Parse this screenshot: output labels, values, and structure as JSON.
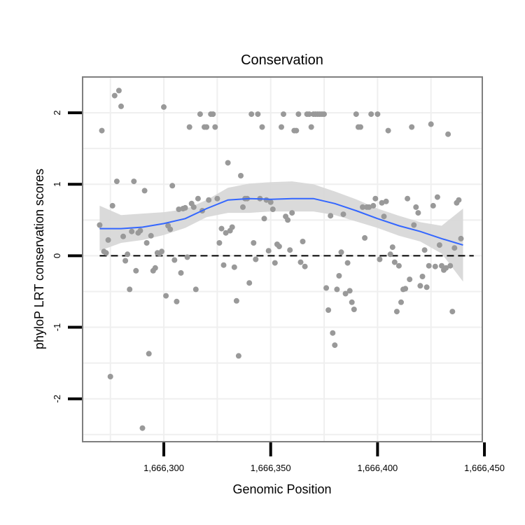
{
  "chart_data": {
    "type": "scatter",
    "title": "Conservation",
    "xlabel": "Genomic Position",
    "ylabel": "phyloP LRT conservation scores",
    "xlim": [
      1666262,
      1666449
    ],
    "ylim": [
      -2.6,
      2.5
    ],
    "xticks": [
      1666300,
      1666350,
      1666400,
      1666450
    ],
    "xtick_labels": [
      "1,666,300",
      "1,666,350",
      "1,666,400",
      "1,666,450"
    ],
    "yticks": [
      -2,
      -1,
      0,
      1,
      2
    ],
    "ytick_labels": [
      "-2",
      "-1",
      "0",
      "1",
      "2"
    ],
    "reference_line": {
      "y": 0,
      "style": "dashed"
    },
    "colors": {
      "points": "#999999",
      "smooth": "#3366ff",
      "band": "#d6d6d6",
      "panel_border": "#7f7f7f",
      "grid": "#efefef"
    },
    "points": [
      [
        1666270,
        0.43
      ],
      [
        1666271,
        1.75
      ],
      [
        1666272,
        0.06
      ],
      [
        1666273,
        0.04
      ],
      [
        1666274,
        0.22
      ],
      [
        1666275,
        -1.69
      ],
      [
        1666276,
        0.7
      ],
      [
        1666277,
        2.24
      ],
      [
        1666278,
        1.04
      ],
      [
        1666279,
        2.31
      ],
      [
        1666280,
        2.09
      ],
      [
        1666281,
        0.27
      ],
      [
        1666282,
        -0.07
      ],
      [
        1666283,
        0.02
      ],
      [
        1666284,
        -0.47
      ],
      [
        1666285,
        0.34
      ],
      [
        1666286,
        1.04
      ],
      [
        1666287,
        -0.21
      ],
      [
        1666288,
        0.32
      ],
      [
        1666289,
        0.35
      ],
      [
        1666290,
        -2.41
      ],
      [
        1666291,
        0.91
      ],
      [
        1666292,
        0.18
      ],
      [
        1666293,
        -1.37
      ],
      [
        1666294,
        0.28
      ],
      [
        1666295,
        -0.21
      ],
      [
        1666296,
        -0.17
      ],
      [
        1666297,
        0.04
      ],
      [
        1666298,
        0.03
      ],
      [
        1666299,
        0.06
      ],
      [
        1666300,
        2.08
      ],
      [
        1666301,
        -0.56
      ],
      [
        1666302,
        0.42
      ],
      [
        1666303,
        0.37
      ],
      [
        1666304,
        0.98
      ],
      [
        1666305,
        -0.06
      ],
      [
        1666306,
        -0.64
      ],
      [
        1666307,
        0.65
      ],
      [
        1666308,
        -0.24
      ],
      [
        1666309,
        0.66
      ],
      [
        1666310,
        0.67
      ],
      [
        1666311,
        -0.02
      ],
      [
        1666312,
        1.8
      ],
      [
        1666313,
        0.73
      ],
      [
        1666314,
        0.68
      ],
      [
        1666315,
        -0.47
      ],
      [
        1666316,
        0.8
      ],
      [
        1666317,
        1.98
      ],
      [
        1666318,
        0.63
      ],
      [
        1666319,
        1.8
      ],
      [
        1666320,
        1.8
      ],
      [
        1666321,
        0.78
      ],
      [
        1666322,
        1.98
      ],
      [
        1666323,
        1.98
      ],
      [
        1666324,
        1.8
      ],
      [
        1666325,
        0.8
      ],
      [
        1666326,
        0.18
      ],
      [
        1666327,
        0.38
      ],
      [
        1666328,
        -0.13
      ],
      [
        1666329,
        0.32
      ],
      [
        1666330,
        1.3
      ],
      [
        1666331,
        0.35
      ],
      [
        1666332,
        0.4
      ],
      [
        1666333,
        -0.16
      ],
      [
        1666334,
        -0.63
      ],
      [
        1666335,
        -1.4
      ],
      [
        1666336,
        1.12
      ],
      [
        1666337,
        0.68
      ],
      [
        1666338,
        0.8
      ],
      [
        1666339,
        0.8
      ],
      [
        1666340,
        -0.38
      ],
      [
        1666341,
        1.98
      ],
      [
        1666342,
        0.18
      ],
      [
        1666343,
        -0.05
      ],
      [
        1666344,
        1.98
      ],
      [
        1666345,
        0.8
      ],
      [
        1666346,
        1.8
      ],
      [
        1666347,
        0.52
      ],
      [
        1666348,
        0.78
      ],
      [
        1666349,
        0.07
      ],
      [
        1666350,
        0.75
      ],
      [
        1666351,
        0.65
      ],
      [
        1666352,
        -0.1
      ],
      [
        1666353,
        0.16
      ],
      [
        1666354,
        0.13
      ],
      [
        1666355,
        1.8
      ],
      [
        1666356,
        1.98
      ],
      [
        1666357,
        0.55
      ],
      [
        1666358,
        0.5
      ],
      [
        1666359,
        0.08
      ],
      [
        1666360,
        0.6
      ],
      [
        1666361,
        1.75
      ],
      [
        1666362,
        1.75
      ],
      [
        1666363,
        1.98
      ],
      [
        1666364,
        -0.09
      ],
      [
        1666365,
        0.2
      ],
      [
        1666366,
        -0.15
      ],
      [
        1666367,
        1.98
      ],
      [
        1666368,
        1.98
      ],
      [
        1666369,
        1.8
      ],
      [
        1666370,
        1.98
      ],
      [
        1666371,
        1.98
      ],
      [
        1666372,
        1.98
      ],
      [
        1666373,
        1.98
      ],
      [
        1666374,
        1.98
      ],
      [
        1666375,
        1.98
      ],
      [
        1666376,
        -0.45
      ],
      [
        1666377,
        -0.76
      ],
      [
        1666378,
        0.56
      ],
      [
        1666379,
        -1.08
      ],
      [
        1666380,
        -1.25
      ],
      [
        1666381,
        -0.47
      ],
      [
        1666382,
        -0.28
      ],
      [
        1666383,
        0.05
      ],
      [
        1666384,
        0.58
      ],
      [
        1666385,
        -0.53
      ],
      [
        1666386,
        -0.1
      ],
      [
        1666387,
        -0.49
      ],
      [
        1666388,
        -0.65
      ],
      [
        1666389,
        -0.75
      ],
      [
        1666390,
        1.98
      ],
      [
        1666391,
        1.8
      ],
      [
        1666392,
        1.8
      ],
      [
        1666393,
        0.68
      ],
      [
        1666394,
        0.25
      ],
      [
        1666395,
        0.68
      ],
      [
        1666396,
        0.68
      ],
      [
        1666397,
        1.98
      ],
      [
        1666398,
        0.7
      ],
      [
        1666399,
        0.8
      ],
      [
        1666400,
        1.98
      ],
      [
        1666401,
        -0.05
      ],
      [
        1666402,
        0.74
      ],
      [
        1666403,
        0.55
      ],
      [
        1666404,
        0.76
      ],
      [
        1666405,
        1.75
      ],
      [
        1666406,
        0.02
      ],
      [
        1666407,
        0.12
      ],
      [
        1666408,
        -0.09
      ],
      [
        1666409,
        -0.78
      ],
      [
        1666410,
        -0.14
      ],
      [
        1666411,
        -0.65
      ],
      [
        1666412,
        -0.47
      ],
      [
        1666413,
        -0.46
      ],
      [
        1666414,
        0.8
      ],
      [
        1666415,
        -0.33
      ],
      [
        1666416,
        1.8
      ],
      [
        1666417,
        0.43
      ],
      [
        1666418,
        0.68
      ],
      [
        1666419,
        0.6
      ],
      [
        1666420,
        -0.42
      ],
      [
        1666421,
        -0.29
      ],
      [
        1666422,
        0.08
      ],
      [
        1666423,
        -0.44
      ],
      [
        1666424,
        -0.14
      ],
      [
        1666425,
        1.84
      ],
      [
        1666426,
        0.7
      ],
      [
        1666427,
        -0.15
      ],
      [
        1666428,
        0.82
      ],
      [
        1666429,
        0.15
      ],
      [
        1666430,
        -0.14
      ],
      [
        1666431,
        -0.2
      ],
      [
        1666432,
        -0.17
      ],
      [
        1666433,
        1.7
      ],
      [
        1666434,
        -0.14
      ],
      [
        1666435,
        -0.78
      ],
      [
        1666436,
        0.11
      ],
      [
        1666437,
        0.74
      ],
      [
        1666438,
        0.78
      ],
      [
        1666439,
        0.24
      ]
    ],
    "smooth": {
      "x": [
        1666270,
        1666280,
        1666290,
        1666300,
        1666310,
        1666320,
        1666330,
        1666340,
        1666350,
        1666360,
        1666370,
        1666380,
        1666390,
        1666400,
        1666410,
        1666420,
        1666430,
        1666440
      ],
      "y": [
        0.38,
        0.38,
        0.4,
        0.45,
        0.52,
        0.66,
        0.78,
        0.8,
        0.79,
        0.8,
        0.8,
        0.73,
        0.63,
        0.52,
        0.42,
        0.34,
        0.24,
        0.15
      ],
      "lower": [
        0.07,
        0.18,
        0.22,
        0.29,
        0.39,
        0.54,
        0.6,
        0.6,
        0.62,
        0.62,
        0.62,
        0.57,
        0.48,
        0.39,
        0.28,
        0.2,
        0.03,
        -0.36
      ],
      "upper": [
        0.7,
        0.57,
        0.59,
        0.61,
        0.65,
        0.78,
        0.95,
        1.01,
        1.03,
        1.04,
        1.0,
        0.9,
        0.79,
        0.66,
        0.56,
        0.47,
        0.42,
        0.66
      ]
    }
  }
}
